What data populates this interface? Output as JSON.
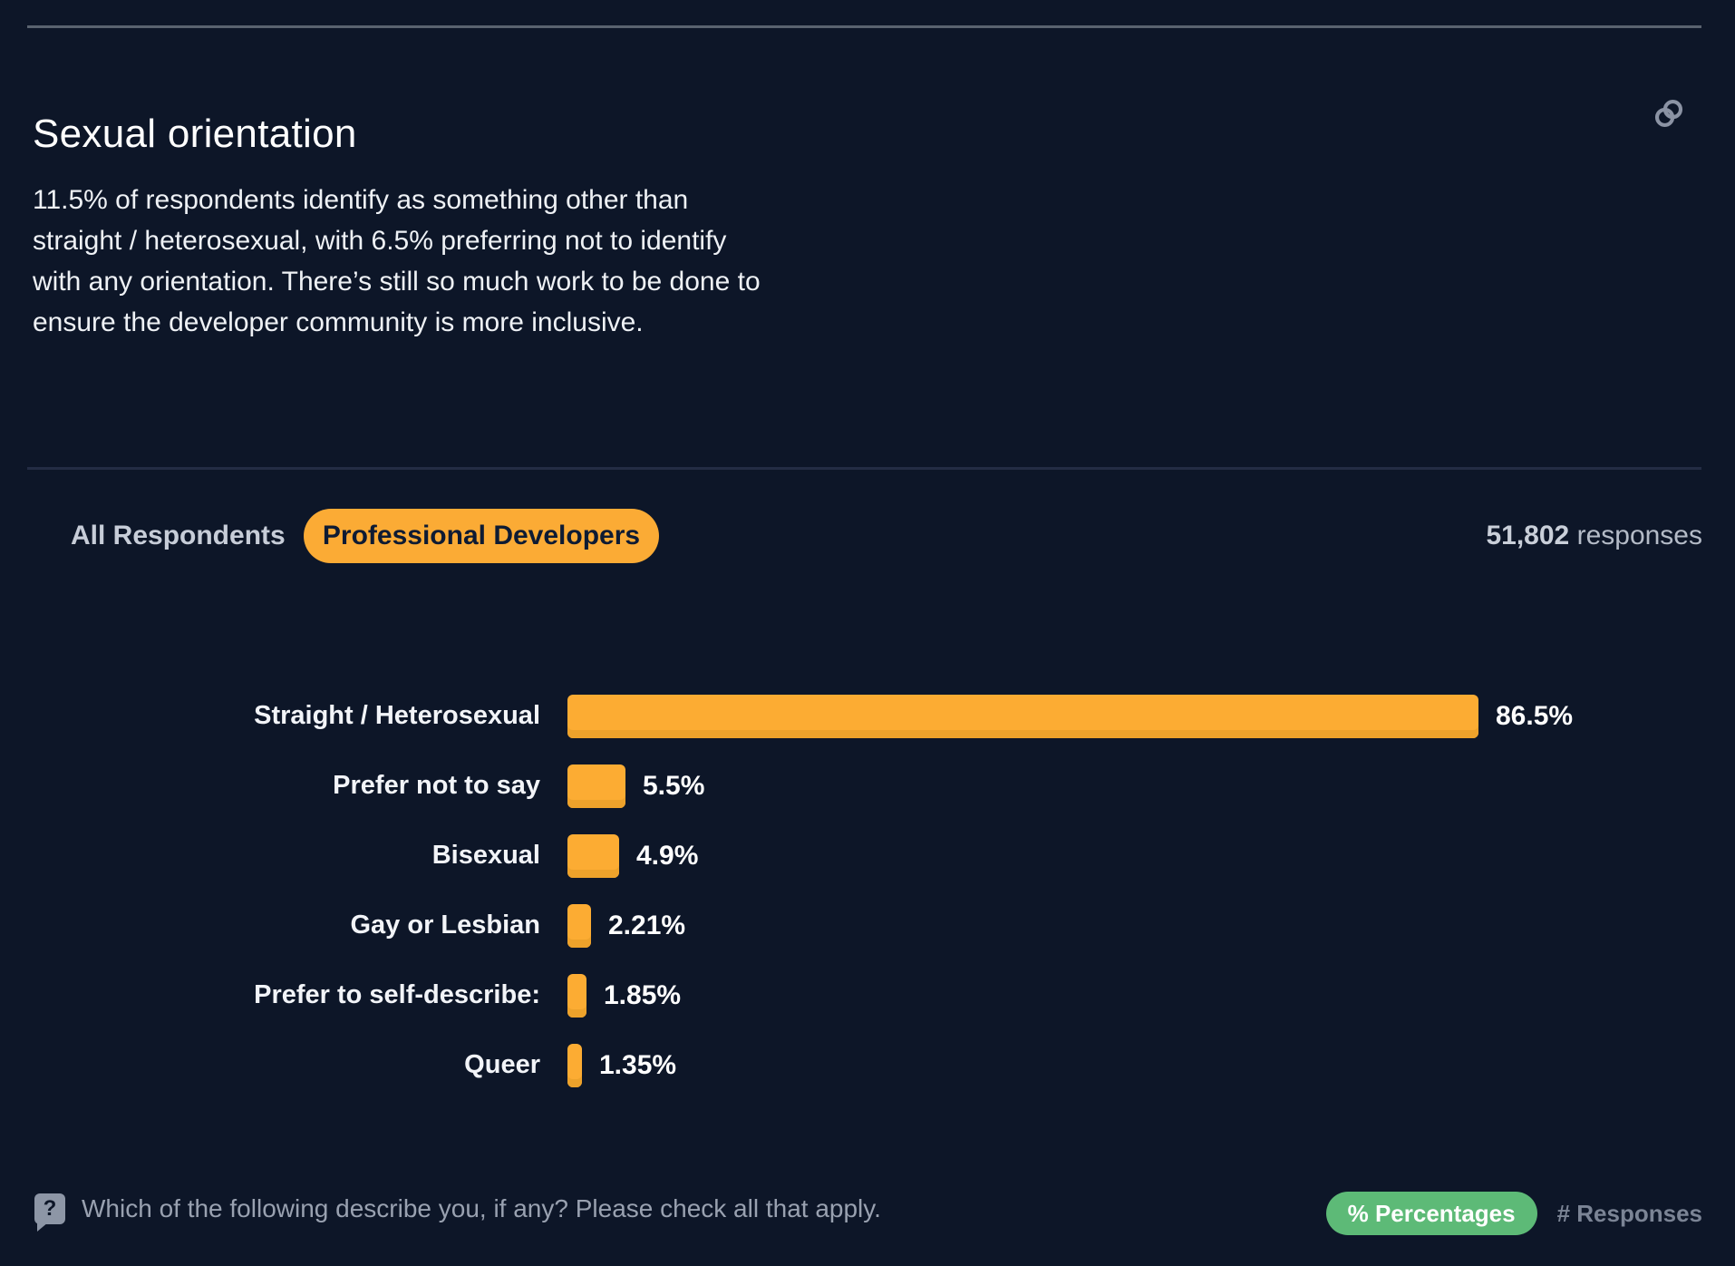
{
  "header": {
    "title": "Sexual orientation"
  },
  "description": {
    "lines": [
      "11.5% of respondents identify as something other than",
      "straight / heterosexual, with 6.5% preferring not to identify",
      "with any orientation. There’s still so much work to be done to",
      "ensure the developer community is more inclusive."
    ]
  },
  "toolbar": {
    "tabs": [
      {
        "label": "All Respondents",
        "active": false
      },
      {
        "label": "Professional Developers",
        "active": true
      }
    ],
    "responses_count": "51,802",
    "responses_label": "responses"
  },
  "chart_data": {
    "type": "bar",
    "orientation": "horizontal",
    "categories": [
      "Straight / Heterosexual",
      "Prefer not to say",
      "Bisexual",
      "Gay or Lesbian",
      "Prefer to self-describe:",
      "Queer"
    ],
    "values": [
      86.5,
      5.5,
      4.9,
      2.21,
      1.85,
      1.35
    ],
    "value_labels": [
      "86.5%",
      "5.5%",
      "4.9%",
      "2.21%",
      "1.85%",
      "1.35%"
    ],
    "bar_color": "#fcac33",
    "bar_shade_color": "#eda22b",
    "xlim": [
      0,
      100
    ],
    "grid": false,
    "legend": "none"
  },
  "footer": {
    "help_icon_glyph": "?",
    "question": "Which of the following describe you, if any? Please check all that apply.",
    "toggles": [
      {
        "label": "% Percentages",
        "active": true
      },
      {
        "label": "# Responses",
        "active": false
      }
    ]
  },
  "colors": {
    "background": "#0d1628",
    "accent_orange": "#fbab35",
    "accent_green": "#5dba77",
    "text_white": "#ffffff",
    "text_muted": "#99a1b0"
  }
}
